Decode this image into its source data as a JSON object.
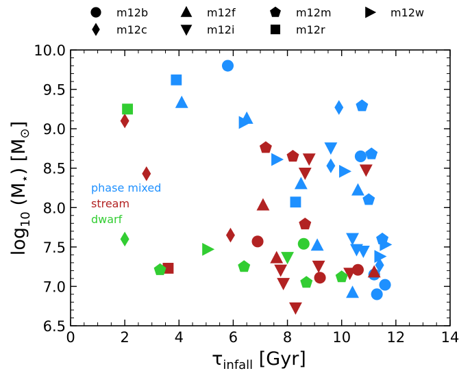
{
  "colors": {
    "phase_mixed": "#1e90ff",
    "stream": "#b22222",
    "dwarf": "#32cd32"
  },
  "legend": {
    "placement": "top",
    "entries": [
      {
        "label": "m12b",
        "marker": "circle"
      },
      {
        "label": "m12f",
        "marker": "triangle-up"
      },
      {
        "label": "m12m",
        "marker": "pentagon"
      },
      {
        "label": "m12w",
        "marker": "triangle-right"
      },
      {
        "label": "m12c",
        "marker": "diamond"
      },
      {
        "label": "m12i",
        "marker": "triangle-down"
      },
      {
        "label": "m12r",
        "marker": "square"
      }
    ]
  },
  "annotations": [
    {
      "text": "phase mixed",
      "class": "phase_mixed"
    },
    {
      "text": "stream",
      "class": "stream"
    },
    {
      "text": "dwarf",
      "class": "dwarf"
    }
  ],
  "chart_data": {
    "type": "scatter",
    "x_title": "τ",
    "x_title_sub": "infall",
    "x_title_unit": " [Gyr]",
    "y_title_prefix": "log",
    "y_title_sub": "10",
    "y_title_mid": " (M",
    "y_title_star": "⋆",
    "y_title_end": ") [M",
    "y_title_sun": "⊙",
    "y_title_close": "]",
    "xlim": [
      0,
      14
    ],
    "ylim": [
      6.5,
      10.0
    ],
    "xticks": [
      "0",
      "2",
      "4",
      "6",
      "8",
      "10",
      "12",
      "14"
    ],
    "yticks": [
      "6.5",
      "7.0",
      "7.5",
      "8.0",
      "8.5",
      "9.0",
      "9.5",
      "10.0"
    ],
    "grid": false,
    "points": [
      {
        "x": 5.8,
        "y": 9.8,
        "marker": "circle",
        "class": "phase_mixed"
      },
      {
        "x": 10.7,
        "y": 8.65,
        "marker": "circle",
        "class": "phase_mixed"
      },
      {
        "x": 11.2,
        "y": 7.15,
        "marker": "circle",
        "class": "phase_mixed"
      },
      {
        "x": 11.6,
        "y": 7.02,
        "marker": "circle",
        "class": "phase_mixed"
      },
      {
        "x": 11.3,
        "y": 6.9,
        "marker": "circle",
        "class": "phase_mixed"
      },
      {
        "x": 3.9,
        "y": 9.62,
        "marker": "square",
        "class": "phase_mixed"
      },
      {
        "x": 8.3,
        "y": 8.07,
        "marker": "square",
        "class": "phase_mixed"
      },
      {
        "x": 4.1,
        "y": 9.33,
        "marker": "triangle-up",
        "class": "phase_mixed"
      },
      {
        "x": 6.5,
        "y": 9.13,
        "marker": "triangle-up",
        "class": "phase_mixed"
      },
      {
        "x": 8.5,
        "y": 8.3,
        "marker": "triangle-up",
        "class": "phase_mixed"
      },
      {
        "x": 10.6,
        "y": 8.22,
        "marker": "triangle-up",
        "class": "phase_mixed"
      },
      {
        "x": 9.1,
        "y": 7.52,
        "marker": "triangle-up",
        "class": "phase_mixed"
      },
      {
        "x": 10.4,
        "y": 6.92,
        "marker": "triangle-up",
        "class": "phase_mixed"
      },
      {
        "x": 9.9,
        "y": 9.27,
        "marker": "diamond",
        "class": "phase_mixed"
      },
      {
        "x": 9.6,
        "y": 8.53,
        "marker": "diamond",
        "class": "phase_mixed"
      },
      {
        "x": 11.4,
        "y": 7.27,
        "marker": "diamond",
        "class": "phase_mixed"
      },
      {
        "x": 10.75,
        "y": 9.29,
        "marker": "pentagon",
        "class": "phase_mixed"
      },
      {
        "x": 11.1,
        "y": 8.68,
        "marker": "pentagon",
        "class": "phase_mixed"
      },
      {
        "x": 11.0,
        "y": 8.1,
        "marker": "pentagon",
        "class": "phase_mixed"
      },
      {
        "x": 11.5,
        "y": 7.6,
        "marker": "pentagon",
        "class": "phase_mixed"
      },
      {
        "x": 6.4,
        "y": 9.08,
        "marker": "triangle-right",
        "class": "phase_mixed"
      },
      {
        "x": 7.6,
        "y": 8.61,
        "marker": "triangle-right",
        "class": "phase_mixed"
      },
      {
        "x": 10.1,
        "y": 8.46,
        "marker": "triangle-right",
        "class": "phase_mixed"
      },
      {
        "x": 11.6,
        "y": 7.53,
        "marker": "triangle-right",
        "class": "phase_mixed"
      },
      {
        "x": 11.4,
        "y": 7.38,
        "marker": "triangle-right",
        "class": "phase_mixed"
      },
      {
        "x": 9.6,
        "y": 8.76,
        "marker": "triangle-down",
        "class": "phase_mixed"
      },
      {
        "x": 10.4,
        "y": 7.61,
        "marker": "triangle-down",
        "class": "phase_mixed"
      },
      {
        "x": 10.55,
        "y": 7.47,
        "marker": "triangle-down",
        "class": "phase_mixed"
      },
      {
        "x": 10.8,
        "y": 7.45,
        "marker": "triangle-down",
        "class": "phase_mixed"
      },
      {
        "x": 6.9,
        "y": 7.57,
        "marker": "circle",
        "class": "stream"
      },
      {
        "x": 9.2,
        "y": 7.11,
        "marker": "circle",
        "class": "stream"
      },
      {
        "x": 10.6,
        "y": 7.21,
        "marker": "circle",
        "class": "stream"
      },
      {
        "x": 3.6,
        "y": 7.23,
        "marker": "square",
        "class": "stream"
      },
      {
        "x": 7.1,
        "y": 8.03,
        "marker": "triangle-up",
        "class": "stream"
      },
      {
        "x": 7.6,
        "y": 7.36,
        "marker": "triangle-up",
        "class": "stream"
      },
      {
        "x": 11.2,
        "y": 7.18,
        "marker": "triangle-up",
        "class": "stream"
      },
      {
        "x": 2.0,
        "y": 9.1,
        "marker": "diamond",
        "class": "stream"
      },
      {
        "x": 2.8,
        "y": 8.43,
        "marker": "diamond",
        "class": "stream"
      },
      {
        "x": 5.9,
        "y": 7.65,
        "marker": "diamond",
        "class": "stream"
      },
      {
        "x": 7.2,
        "y": 8.76,
        "marker": "pentagon",
        "class": "stream"
      },
      {
        "x": 8.2,
        "y": 8.65,
        "marker": "pentagon",
        "class": "stream"
      },
      {
        "x": 8.65,
        "y": 7.79,
        "marker": "pentagon",
        "class": "stream"
      },
      {
        "x": 8.8,
        "y": 8.62,
        "marker": "triangle-down",
        "class": "stream"
      },
      {
        "x": 8.65,
        "y": 8.44,
        "marker": "triangle-down",
        "class": "stream"
      },
      {
        "x": 10.9,
        "y": 8.48,
        "marker": "triangle-down",
        "class": "stream"
      },
      {
        "x": 7.75,
        "y": 7.21,
        "marker": "triangle-down",
        "class": "stream"
      },
      {
        "x": 7.85,
        "y": 7.04,
        "marker": "triangle-down",
        "class": "stream"
      },
      {
        "x": 9.15,
        "y": 7.26,
        "marker": "triangle-down",
        "class": "stream"
      },
      {
        "x": 8.3,
        "y": 6.73,
        "marker": "triangle-down",
        "class": "stream"
      },
      {
        "x": 10.3,
        "y": 7.17,
        "marker": "triangle-down",
        "class": "stream"
      },
      {
        "x": 2.1,
        "y": 9.25,
        "marker": "square",
        "class": "dwarf"
      },
      {
        "x": 8.6,
        "y": 7.54,
        "marker": "circle",
        "class": "dwarf"
      },
      {
        "x": 2.0,
        "y": 7.6,
        "marker": "diamond",
        "class": "dwarf"
      },
      {
        "x": 3.3,
        "y": 7.21,
        "marker": "pentagon",
        "class": "dwarf"
      },
      {
        "x": 6.4,
        "y": 7.25,
        "marker": "pentagon",
        "class": "dwarf"
      },
      {
        "x": 8.7,
        "y": 7.05,
        "marker": "pentagon",
        "class": "dwarf"
      },
      {
        "x": 10.0,
        "y": 7.12,
        "marker": "pentagon",
        "class": "dwarf"
      },
      {
        "x": 5.05,
        "y": 7.47,
        "marker": "triangle-right",
        "class": "dwarf"
      },
      {
        "x": 8.0,
        "y": 7.37,
        "marker": "triangle-down",
        "class": "dwarf"
      }
    ]
  }
}
